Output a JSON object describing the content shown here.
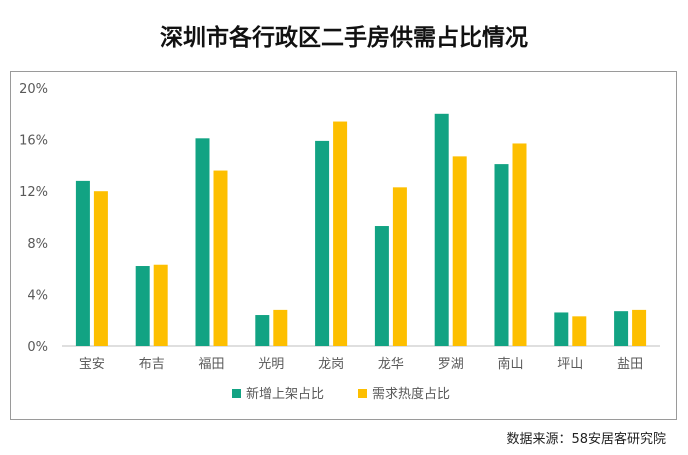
{
  "title": "深圳市各行政区二手房供需占比情况",
  "source": "数据来源：58安居客研究院",
  "colors": {
    "supply": "#12A383",
    "demand": "#FDBF00",
    "axis": "#bfbfbf",
    "text": "#595959"
  },
  "chart_data": {
    "type": "bar",
    "title": "深圳市各行政区二手房供需占比情况",
    "categories": [
      "宝安",
      "布吉",
      "福田",
      "光明",
      "龙岗",
      "龙华",
      "罗湖",
      "南山",
      "坪山",
      "盐田"
    ],
    "series": [
      {
        "name": "新增上架占比",
        "values": [
          12.8,
          6.2,
          16.1,
          2.4,
          15.9,
          9.3,
          18.0,
          14.1,
          2.6,
          2.7
        ]
      },
      {
        "name": "需求热度占比",
        "values": [
          12.0,
          6.3,
          13.6,
          2.8,
          17.4,
          12.3,
          14.7,
          15.7,
          2.3,
          2.8
        ]
      }
    ],
    "yticks": [
      "0%",
      "4%",
      "8%",
      "12%",
      "16%",
      "20%"
    ],
    "ylim": [
      0,
      20
    ],
    "xlabel": "",
    "ylabel": "",
    "legend": "bottom-center",
    "grid": false
  }
}
